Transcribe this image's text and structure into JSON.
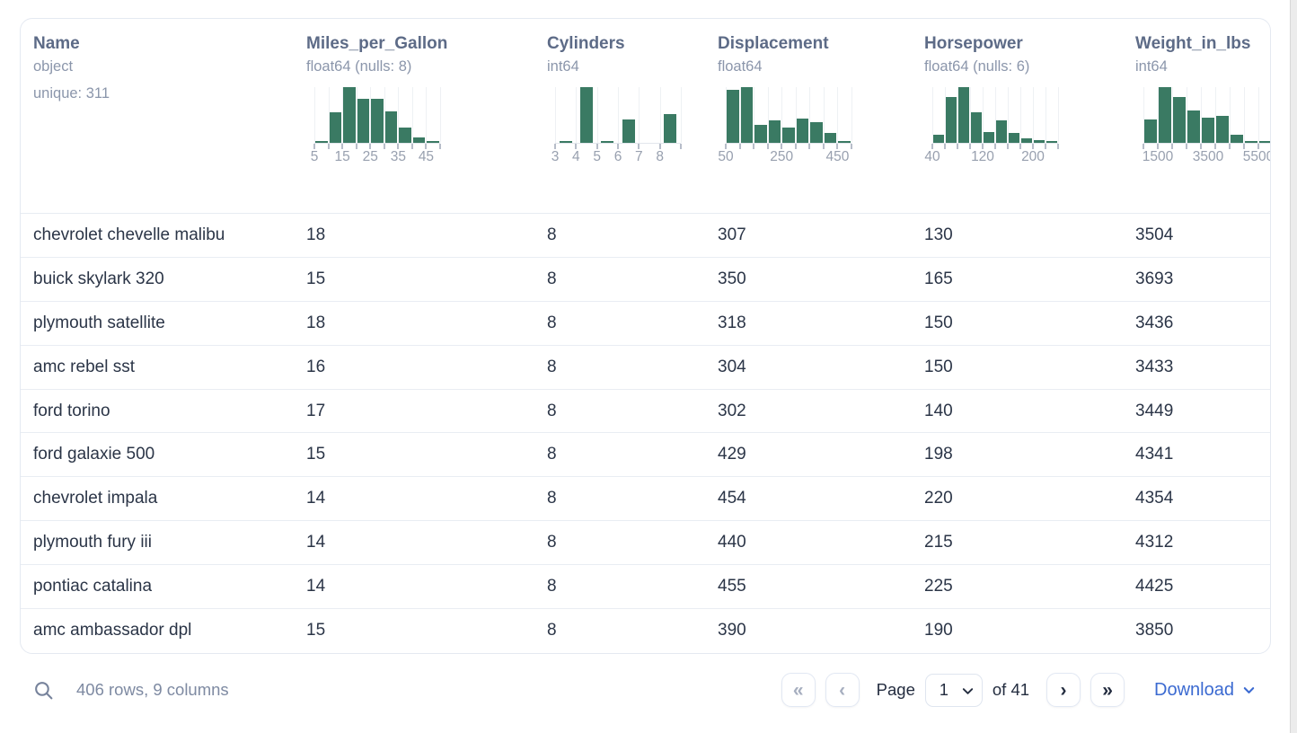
{
  "table": {
    "columns": [
      {
        "name": "Name",
        "type": "object",
        "extra": "unique: 311",
        "hist": null
      },
      {
        "name": "Miles_per_Gallon",
        "type": "float64 (nulls: 8)",
        "extra": null,
        "hist": "Miles_per_Gallon"
      },
      {
        "name": "Cylinders",
        "type": "int64",
        "extra": null,
        "hist": "Cylinders"
      },
      {
        "name": "Displacement",
        "type": "float64",
        "extra": null,
        "hist": "Displacement"
      },
      {
        "name": "Horsepower",
        "type": "float64 (nulls: 6)",
        "extra": null,
        "hist": "Horsepower"
      },
      {
        "name": "Weight_in_lbs",
        "type": "int64",
        "extra": null,
        "hist": "Weight_in_lbs"
      }
    ],
    "rows": [
      [
        "chevrolet chevelle malibu",
        "18",
        "8",
        "307",
        "130",
        "3504"
      ],
      [
        "buick skylark 320",
        "15",
        "8",
        "350",
        "165",
        "3693"
      ],
      [
        "plymouth satellite",
        "18",
        "8",
        "318",
        "150",
        "3436"
      ],
      [
        "amc rebel sst",
        "16",
        "8",
        "304",
        "150",
        "3433"
      ],
      [
        "ford torino",
        "17",
        "8",
        "302",
        "140",
        "3449"
      ],
      [
        "ford galaxie 500",
        "15",
        "8",
        "429",
        "198",
        "4341"
      ],
      [
        "chevrolet impala",
        "14",
        "8",
        "454",
        "220",
        "4354"
      ],
      [
        "plymouth fury iii",
        "14",
        "8",
        "440",
        "215",
        "4312"
      ],
      [
        "pontiac catalina",
        "14",
        "8",
        "455",
        "225",
        "4425"
      ],
      [
        "amc ambassador dpl",
        "15",
        "8",
        "390",
        "190",
        "3850"
      ]
    ]
  },
  "chart_data": [
    {
      "type": "histogram",
      "column": "Miles_per_Gallon",
      "relative_heights": [
        2,
        55,
        100,
        79,
        79,
        56,
        27,
        10,
        2
      ],
      "x_range": [
        5,
        50
      ],
      "tick_labels": [
        {
          "pos": 0,
          "label": "5"
        },
        {
          "pos": 2,
          "label": "15"
        },
        {
          "pos": 4,
          "label": "25"
        },
        {
          "pos": 6,
          "label": "35"
        },
        {
          "pos": 8,
          "label": "45"
        }
      ],
      "width": 140
    },
    {
      "type": "histogram",
      "column": "Cylinders",
      "relative_heights": [
        3,
        100,
        2,
        42,
        0,
        52
      ],
      "x_range": [
        3,
        9
      ],
      "tick_labels": [
        {
          "pos": 0,
          "label": "3"
        },
        {
          "pos": 1,
          "label": "4"
        },
        {
          "pos": 2,
          "label": "5"
        },
        {
          "pos": 3,
          "label": "6"
        },
        {
          "pos": 4,
          "label": "7"
        },
        {
          "pos": 5,
          "label": "8"
        }
      ],
      "width": 140
    },
    {
      "type": "histogram",
      "column": "Displacement",
      "relative_heights": [
        95,
        100,
        33,
        41,
        28,
        44,
        37,
        17,
        4
      ],
      "x_range": [
        50,
        500
      ],
      "tick_labels": [
        {
          "pos": 0,
          "label": "50"
        },
        {
          "pos": 4,
          "label": "250"
        },
        {
          "pos": 8,
          "label": "450"
        }
      ],
      "width": 140
    },
    {
      "type": "histogram",
      "column": "Horsepower",
      "relative_heights": [
        15,
        83,
        100,
        55,
        20,
        40,
        17,
        8,
        5,
        4
      ],
      "x_range": [
        40,
        240
      ],
      "tick_labels": [
        {
          "pos": 0,
          "label": "40"
        },
        {
          "pos": 4,
          "label": "120"
        },
        {
          "pos": 8,
          "label": "200"
        }
      ],
      "width": 140
    },
    {
      "type": "histogram",
      "column": "Weight_in_lbs",
      "relative_heights": [
        42,
        100,
        82,
        58,
        45,
        48,
        14,
        2,
        1,
        0
      ],
      "x_range": [
        1500,
        6000
      ],
      "tick_labels": [
        {
          "pos": 1,
          "label": "1500"
        },
        {
          "pos": 4.5,
          "label": "3500"
        },
        {
          "pos": 8,
          "label": "5500"
        }
      ],
      "width": 160
    }
  ],
  "footer": {
    "status": "406 rows, 9 columns",
    "pagination": {
      "first": "«",
      "prev": "‹",
      "page_label": "Page",
      "page_value": "1",
      "of_label": "of 41",
      "next": "›",
      "last": "»"
    },
    "download_label": "Download"
  },
  "colors": {
    "histogram_bar": "#3a7a63",
    "accent_blue": "#3b6ad1",
    "header_text": "#5d6b87",
    "muted_text": "#8b96ab",
    "row_text": "#2b3547"
  }
}
